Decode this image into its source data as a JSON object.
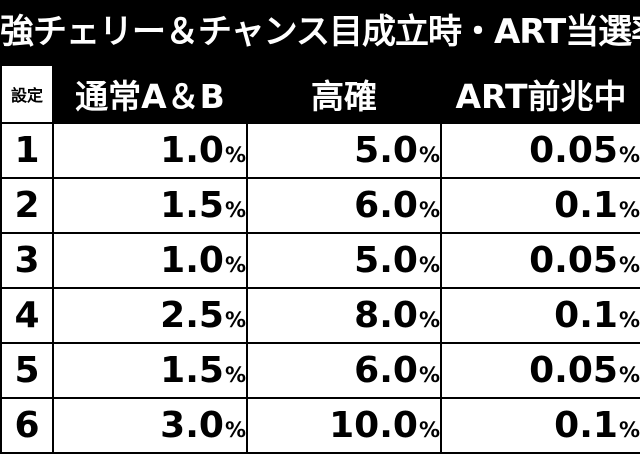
{
  "title": "強チェリー＆チャンス目成立時・ART当選率",
  "table": {
    "headers": {
      "setting": "設定",
      "normal": "通常A＆B",
      "high": "高確",
      "art": "ART前兆中"
    },
    "rows": [
      {
        "setting": "1",
        "normal": "1.0",
        "high": "5.0",
        "art": "0.05"
      },
      {
        "setting": "2",
        "normal": "1.5",
        "high": "6.0",
        "art": "0.1"
      },
      {
        "setting": "3",
        "normal": "1.0",
        "high": "5.0",
        "art": "0.05"
      },
      {
        "setting": "4",
        "normal": "2.5",
        "high": "8.0",
        "art": "0.1"
      },
      {
        "setting": "5",
        "normal": "1.5",
        "high": "6.0",
        "art": "0.05"
      },
      {
        "setting": "6",
        "normal": "3.0",
        "high": "10.0",
        "art": "0.1"
      }
    ],
    "unit": "%"
  }
}
